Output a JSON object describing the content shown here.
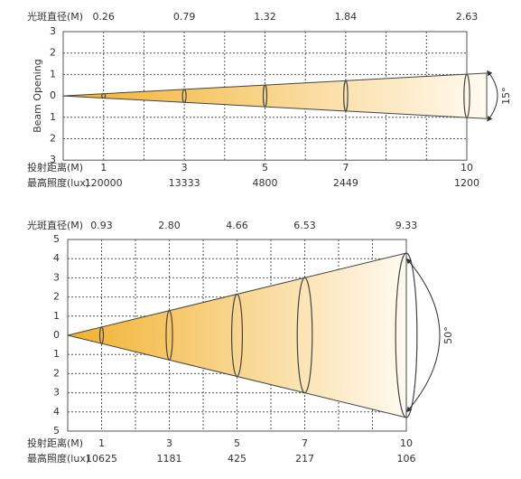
{
  "diagrams": [
    {
      "spot_label": "光斑直径(M)",
      "spot_diameters": [
        "0.26",
        "0.79",
        "1.32",
        "1.84",
        "2.63"
      ],
      "y_labels": [
        3,
        2,
        1,
        0,
        1,
        2,
        3
      ],
      "side_label": "Beam Opening",
      "angle": "15°",
      "distance_label": "投射距离(M)",
      "distances": [
        1,
        3,
        5,
        7,
        10
      ],
      "lux_label": "最高照度(lux)",
      "lux": [
        120000,
        13333,
        4800,
        2449,
        1200
      ]
    },
    {
      "spot_label": "光斑直径(M)",
      "spot_diameters": [
        "0.93",
        "2.80",
        "4.66",
        "6.53",
        "9.33"
      ],
      "y_labels": [
        5,
        4,
        3,
        2,
        1,
        0,
        1,
        2,
        3,
        4,
        5
      ],
      "angle": "50°",
      "distance_label": "投射距离(M)",
      "distances": [
        1,
        3,
        5,
        7,
        10
      ],
      "lux_label": "最高照度(lux)",
      "lux": [
        10625,
        1181,
        425,
        217,
        106
      ]
    }
  ]
}
